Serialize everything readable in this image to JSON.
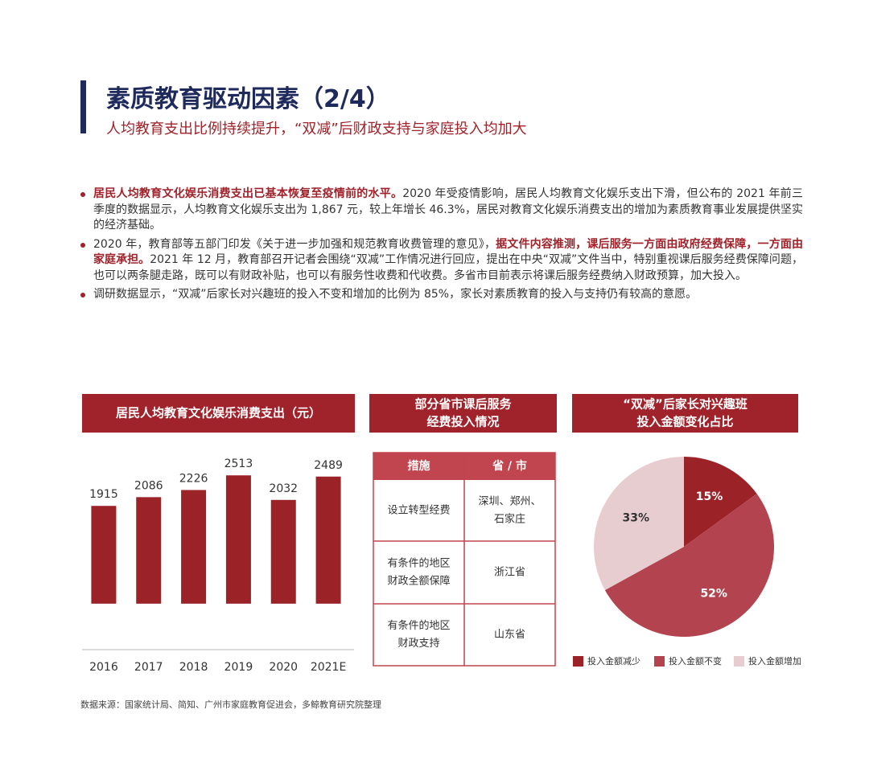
{
  "header": {
    "title": "素质教育驱动因素（2/4）",
    "subtitle": "人均教育支出比例持续提升，“双减”后财政支持与家庭投入均加大"
  },
  "bullets": [
    [
      {
        "text": "居民人均教育文化娱乐消费支出已基本恢复至疫情前的水平。",
        "bold": true
      },
      {
        "text": "2020 年受疫情影响，居民人均教育文化娱乐支出下滑，但公布的 2021 年前三季度的数据显示，人均教育文化娱乐支出为 1,867 元，较上年增长 46.3%，居民对教育文化娱乐消费支出的增加为素质教育事业发展提供坚实的经济基础。",
        "bold": false
      }
    ],
    [
      {
        "text": "2020 年，教育部等五部门印发《关于进一步加强和规范教育收费管理的意见》，",
        "bold": false
      },
      {
        "text": "据文件内容推测，课后服务一方面由政府经费保障，一方面由家庭承担。",
        "bold": true
      },
      {
        "text": "2021 年 12 月，教育部召开记者会围绕“双减”工作情况进行回应，提出在中央“双减”文件当中，特别重视课后服务经费保障问题，也可以两条腿走路，既可以有财政补贴，也可以有服务性收费和代收费。多省市目前表示将课后服务经费纳入财政预算，加大投入。",
        "bold": false
      }
    ],
    [
      {
        "text": "调研数据显示，“双减”后家长对兴趣班的投入不变和增加的比例为 85%，家长对素质教育的投入与支持仍有较高的意愿。",
        "bold": false
      }
    ]
  ],
  "chart_data": [
    {
      "type": "bar",
      "title": "居民人均教育文化娱乐消费支出（元）",
      "categories": [
        "2016",
        "2017",
        "2018",
        "2019",
        "2020",
        "2021E"
      ],
      "values": [
        1915,
        2086,
        2226,
        2513,
        2032,
        2489
      ],
      "color": "#9b2227",
      "ylim": [
        -900,
        2800
      ]
    },
    {
      "type": "pie",
      "title": [
        "“双减”后家长对兴趣班",
        "投入金额变化占比"
      ],
      "categories": [
        "投入金额减少",
        "投入金额不变",
        "投入金额增加"
      ],
      "values": [
        15,
        52,
        33
      ],
      "value_labels": [
        "15%",
        "52%",
        "33%"
      ],
      "colors": [
        "#9b2227",
        "#b3444f",
        "#e8cdd0"
      ],
      "legend": "bottom"
    }
  ],
  "table": {
    "title": [
      "部分省市课后服务",
      "经费投入情况"
    ],
    "header": [
      "措施",
      "省 / 市"
    ],
    "rows": [
      [
        [
          "设立转型经费"
        ],
        [
          "深圳、郑州、",
          "石家庄"
        ]
      ],
      [
        [
          "有条件的地区",
          "财政全额保障"
        ],
        [
          "浙江省"
        ]
      ],
      [
        [
          "有条件的地区",
          "财政支持"
        ],
        [
          "山东省"
        ]
      ]
    ]
  },
  "source": "数据来源：国家统计局、简知、广州市家庭教育促进会，多鲸教育研究院整理"
}
